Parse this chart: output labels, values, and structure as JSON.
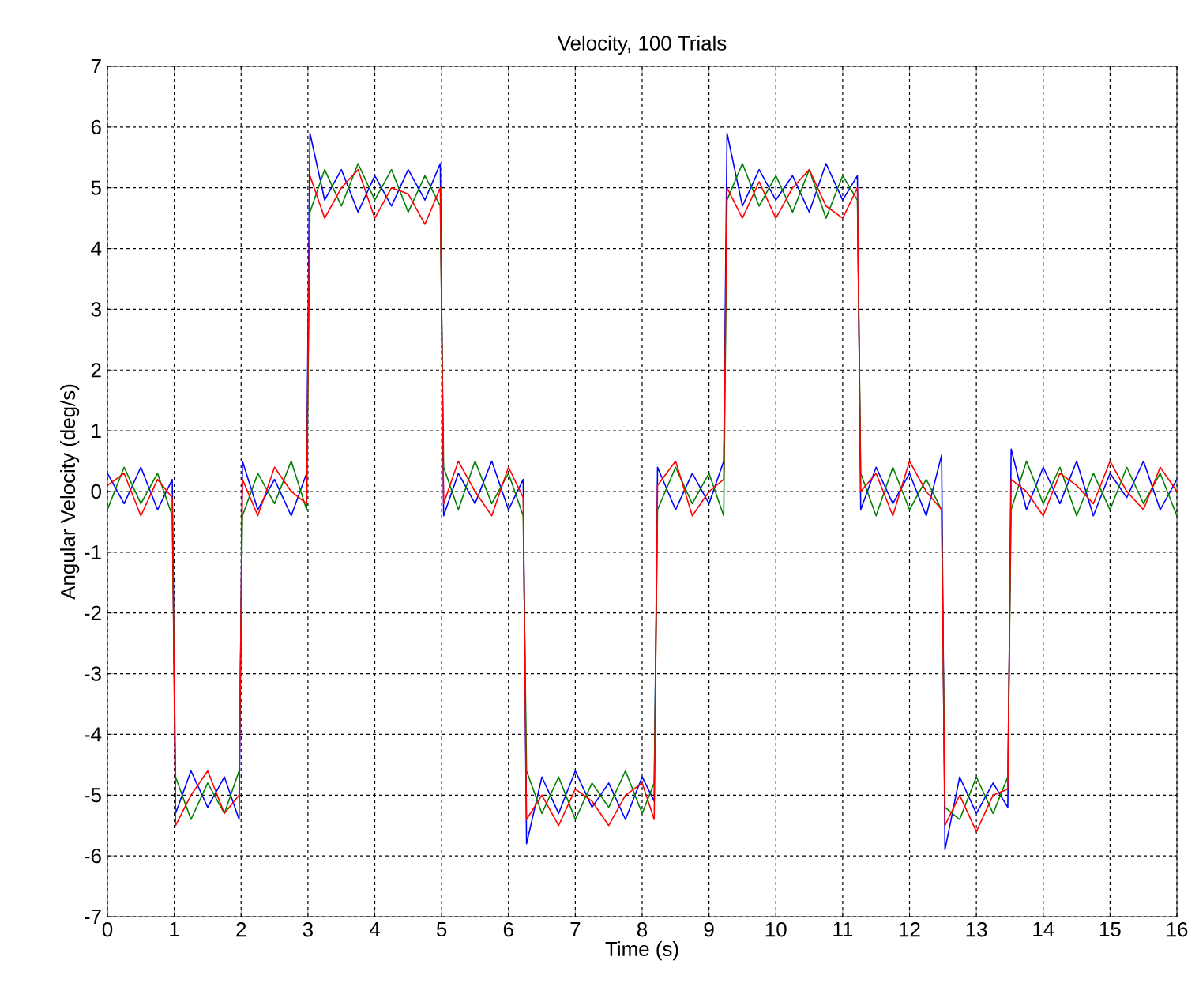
{
  "chart_data": {
    "type": "line",
    "title": "Velocity, 100 Trials",
    "xlabel": "Time (s)",
    "ylabel": "Angular Velocity (deg/s)",
    "x": [
      0,
      0.25,
      0.5,
      0.75,
      0.97,
      1.02,
      1.25,
      1.5,
      1.75,
      1.97,
      2.02,
      2.25,
      2.5,
      2.75,
      2.98,
      3.03,
      3.25,
      3.5,
      3.75,
      4,
      4.25,
      4.5,
      4.75,
      4.98,
      5.03,
      5.25,
      5.5,
      5.75,
      6,
      6.22,
      6.27,
      6.5,
      6.75,
      7,
      7.25,
      7.5,
      7.75,
      8,
      8.18,
      8.23,
      8.5,
      8.75,
      9,
      9.22,
      9.27,
      9.5,
      9.75,
      10,
      10.25,
      10.5,
      10.75,
      11,
      11.22,
      11.27,
      11.5,
      11.75,
      12,
      12.25,
      12.48,
      12.53,
      12.75,
      13,
      13.25,
      13.47,
      13.52,
      13.75,
      14,
      14.25,
      14.5,
      14.75,
      15,
      15.25,
      15.5,
      15.75,
      16
    ],
    "series": [
      {
        "color": "#0000ff",
        "values": [
          0.3,
          -0.2,
          0.4,
          -0.3,
          0.2,
          -5.3,
          -4.6,
          -5.2,
          -4.7,
          -5.4,
          0.5,
          -0.3,
          0.2,
          -0.4,
          0.3,
          5.9,
          4.8,
          5.3,
          4.6,
          5.2,
          4.7,
          5.3,
          4.8,
          5.4,
          -0.4,
          0.3,
          -0.2,
          0.5,
          -0.3,
          0.2,
          -5.8,
          -4.7,
          -5.3,
          -4.6,
          -5.2,
          -4.8,
          -5.4,
          -4.7,
          -5.1,
          0.4,
          -0.3,
          0.3,
          -0.2,
          0.5,
          5.9,
          4.7,
          5.3,
          4.8,
          5.2,
          4.6,
          5.4,
          4.8,
          5.2,
          -0.3,
          0.4,
          -0.2,
          0.3,
          -0.4,
          0.6,
          -5.9,
          -4.7,
          -5.3,
          -4.8,
          -5.2,
          0.7,
          -0.3,
          0.4,
          -0.2,
          0.5,
          -0.4,
          0.3,
          -0.1,
          0.5,
          -0.3,
          0.2
        ]
      },
      {
        "color": "#008000",
        "values": [
          -0.3,
          0.4,
          -0.2,
          0.3,
          -0.4,
          -4.7,
          -5.4,
          -4.8,
          -5.3,
          -4.6,
          -0.4,
          0.3,
          -0.2,
          0.5,
          -0.3,
          4.6,
          5.3,
          4.7,
          5.4,
          4.8,
          5.3,
          4.6,
          5.2,
          4.7,
          0.4,
          -0.3,
          0.5,
          -0.2,
          0.3,
          -0.4,
          -4.6,
          -5.3,
          -4.7,
          -5.4,
          -4.8,
          -5.2,
          -4.6,
          -5.3,
          -4.8,
          -0.3,
          0.4,
          -0.2,
          0.3,
          -0.4,
          4.8,
          5.4,
          4.7,
          5.2,
          4.6,
          5.3,
          4.5,
          5.2,
          4.8,
          0.3,
          -0.4,
          0.4,
          -0.3,
          0.2,
          -0.3,
          -5.2,
          -5.4,
          -4.7,
          -5.3,
          -4.7,
          -0.3,
          0.5,
          -0.2,
          0.4,
          -0.4,
          0.3,
          -0.3,
          0.4,
          -0.2,
          0.3,
          -0.4
        ]
      },
      {
        "color": "#ff0000",
        "values": [
          0.1,
          0.3,
          -0.4,
          0.2,
          -0.1,
          -5.5,
          -5.0,
          -4.6,
          -5.3,
          -5.0,
          0.2,
          -0.4,
          0.4,
          0.0,
          -0.2,
          5.2,
          4.5,
          5.0,
          5.3,
          4.5,
          5.0,
          4.9,
          4.4,
          5.0,
          -0.2,
          0.5,
          0.0,
          -0.4,
          0.4,
          -0.1,
          -5.4,
          -5.0,
          -5.5,
          -4.9,
          -5.1,
          -5.5,
          -5.0,
          -4.8,
          -5.4,
          0.1,
          0.5,
          -0.4,
          0.0,
          0.2,
          5.0,
          4.5,
          5.1,
          4.5,
          5.0,
          5.3,
          4.7,
          4.5,
          5.0,
          0.0,
          0.3,
          -0.4,
          0.5,
          0.0,
          -0.3,
          -5.5,
          -5.0,
          -5.6,
          -5.0,
          -4.9,
          0.2,
          0.0,
          -0.4,
          0.3,
          0.1,
          -0.2,
          0.5,
          0.0,
          -0.3,
          0.4,
          0.0
        ]
      }
    ],
    "xlim": [
      0,
      16
    ],
    "ylim": [
      -7,
      7
    ],
    "xticks": [
      0,
      1,
      2,
      3,
      4,
      5,
      6,
      7,
      8,
      9,
      10,
      11,
      12,
      13,
      14,
      15,
      16
    ],
    "yticks": [
      -7,
      -6,
      -5,
      -4,
      -3,
      -2,
      -1,
      0,
      1,
      2,
      3,
      4,
      5,
      6,
      7
    ],
    "grid": true,
    "line_style": "solid"
  }
}
